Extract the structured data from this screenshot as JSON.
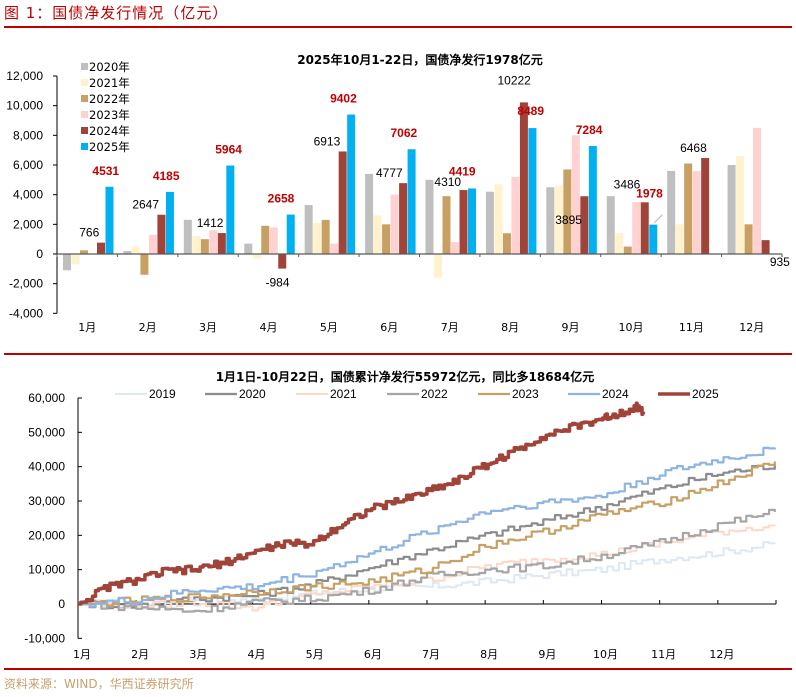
{
  "figure_title": "图 1：国债净发行情况（亿元）",
  "source": "资料来源：WIND，华西证券研究所",
  "colors": {
    "accent": "#c00000",
    "source_text": "#c8a06e"
  },
  "chart_data": [
    {
      "type": "bar",
      "title": "2025年10月1-22日，国债净发行1978亿元",
      "xlabel": "",
      "ylabel": "",
      "ylim": [
        -4000,
        12000
      ],
      "yticks": [
        -4000,
        -2000,
        0,
        2000,
        4000,
        6000,
        8000,
        10000,
        12000
      ],
      "ytick_labels": [
        "-4,000",
        "-2,000",
        "0",
        "2,000",
        "4,000",
        "6,000",
        "8,000",
        "10,000",
        "12,000"
      ],
      "categories": [
        "1月",
        "2月",
        "3月",
        "4月",
        "5月",
        "6月",
        "7月",
        "8月",
        "9月",
        "10月",
        "11月",
        "12月"
      ],
      "legend_position": "top-left",
      "series": [
        {
          "name": "2020年",
          "color": "#bfbfbf",
          "values": [
            -1100,
            200,
            2300,
            700,
            3300,
            5400,
            5000,
            4200,
            4500,
            3900,
            5600,
            6000
          ]
        },
        {
          "name": "2021年",
          "color": "#fff2cc",
          "values": [
            -700,
            500,
            1200,
            -300,
            2100,
            2600,
            -1600,
            4700,
            4600,
            1400,
            2000,
            6600
          ]
        },
        {
          "name": "2022年",
          "color": "#c9a063",
          "values": [
            250,
            -1400,
            1000,
            1900,
            2300,
            2000,
            3900,
            1400,
            5700,
            500,
            6100,
            2000
          ]
        },
        {
          "name": "2023年",
          "color": "#ffd1d1",
          "values": [
            0,
            1300,
            1600,
            1800,
            700,
            4000,
            800,
            5200,
            8000,
            3500,
            5600,
            8500
          ]
        },
        {
          "name": "2024年",
          "color": "#a0443a",
          "values": [
            766,
            2647,
            1412,
            -984,
            6913,
            4777,
            4310,
            10222,
            3895,
            3486,
            6468,
            935
          ]
        },
        {
          "name": "2025年",
          "color": "#00b0f0",
          "values": [
            4531,
            4185,
            5964,
            2658,
            9402,
            7062,
            4419,
            8489,
            7284,
            1978,
            null,
            null
          ]
        }
      ],
      "data_labels": {
        "2024年": [
          "766",
          "2647",
          "1412",
          "-984",
          "6913",
          "4777",
          "4310",
          "10222",
          "3895",
          "3486",
          "6468",
          "935"
        ],
        "2025年": [
          "4531",
          "4185",
          "5964",
          "2658",
          "9402",
          "7062",
          "4419",
          "8489",
          "7284",
          "1978"
        ]
      }
    },
    {
      "type": "line",
      "title": "1月1日-10月22日，国债累计净发行55972亿元，同比多18684亿元",
      "xlabel": "",
      "ylabel": "",
      "ylim": [
        -10000,
        60000
      ],
      "yticks": [
        -10000,
        0,
        10000,
        20000,
        30000,
        40000,
        50000,
        60000
      ],
      "ytick_labels": [
        "-10,000",
        "0",
        "10,000",
        "20,000",
        "30,000",
        "40,000",
        "50,000",
        "60,000"
      ],
      "x_tick_labels": [
        "1月",
        "2月",
        "3月",
        "4月",
        "5月",
        "6月",
        "7月",
        "8月",
        "9月",
        "10月",
        "11月",
        "12月"
      ],
      "x_unit": "month (1 = Jan 1)",
      "legend_position": "top",
      "series": [
        {
          "name": "2019",
          "color": "#dde8f5",
          "width": 2,
          "x": [
            1,
            2,
            3,
            4,
            5,
            6,
            7,
            8,
            9,
            10,
            11,
            12,
            12.98
          ],
          "y": [
            0,
            500,
            1500,
            1200,
            3000,
            4500,
            5000,
            6500,
            8500,
            10000,
            13000,
            15000,
            17500
          ]
        },
        {
          "name": "2020",
          "color": "#8c8c8c",
          "width": 2.2,
          "x": [
            1,
            2,
            3,
            4,
            5,
            6,
            7,
            8,
            9,
            10,
            11,
            12,
            12.98
          ],
          "y": [
            0,
            -500,
            1500,
            2500,
            5500,
            10500,
            15500,
            20000,
            24000,
            28500,
            33500,
            38000,
            40500
          ]
        },
        {
          "name": "2021",
          "color": "#fbd9c9",
          "width": 2,
          "x": [
            1,
            2,
            3,
            4,
            5,
            6,
            7,
            8,
            9,
            10,
            11,
            12,
            12.98
          ],
          "y": [
            0,
            -500,
            500,
            -1000,
            2500,
            5000,
            7000,
            11000,
            13000,
            14500,
            17500,
            21000,
            23000
          ]
        },
        {
          "name": "2022",
          "color": "#a6a6a6",
          "width": 2.2,
          "x": [
            1,
            2,
            3,
            4,
            5,
            6,
            7,
            8,
            9,
            10,
            11,
            12,
            12.98
          ],
          "y": [
            0,
            -1000,
            -2000,
            500,
            1500,
            4000,
            8000,
            10000,
            11000,
            14000,
            18000,
            23000,
            26800
          ]
        },
        {
          "name": "2023",
          "color": "#c9a063",
          "width": 2.2,
          "x": [
            1,
            2,
            3,
            4,
            5,
            6,
            7,
            8,
            9,
            10,
            11,
            12,
            12.98
          ],
          "y": [
            0,
            1000,
            2000,
            3500,
            5000,
            6500,
            10000,
            17000,
            21000,
            26000,
            29500,
            35000,
            41500
          ]
        },
        {
          "name": "2024",
          "color": "#8db4e2",
          "width": 2.2,
          "x": [
            1,
            2,
            3,
            4,
            5,
            6,
            7,
            8,
            9,
            10,
            11,
            12,
            12.98
          ],
          "y": [
            0,
            1000,
            4000,
            5000,
            9000,
            14500,
            21000,
            27000,
            29500,
            31500,
            38000,
            42000,
            45000
          ]
        },
        {
          "name": "2025",
          "color": "#a0443a",
          "width": 3.5,
          "x": [
            1,
            1.5,
            2,
            2.5,
            3,
            3.5,
            4,
            4.5,
            5,
            5.5,
            6,
            6.5,
            7,
            7.5,
            8,
            8.5,
            9,
            9.5,
            10,
            10.2,
            10.6,
            10.72
          ],
          "y": [
            0,
            5000,
            7000,
            9500,
            10000,
            12000,
            15000,
            17500,
            17500,
            23000,
            27500,
            30000,
            33000,
            36000,
            40500,
            44500,
            49000,
            51500,
            54000,
            55000,
            57500,
            55972
          ]
        }
      ]
    }
  ]
}
